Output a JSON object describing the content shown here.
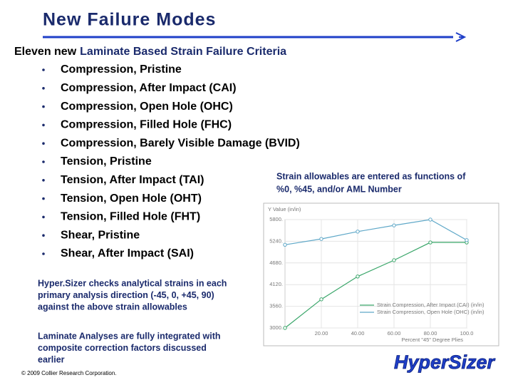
{
  "title": "New Failure Modes",
  "intro": {
    "plain": "Eleven new",
    "highlight": "Laminate Based Strain Failure Criteria"
  },
  "bullets": [
    "Compression, Pristine",
    "Compression, After Impact (CAI)",
    "Compression, Open Hole (OHC)",
    "Compression, Filled Hole (FHC)",
    "Compression, Barely Visible Damage (BVID)",
    "Tension, Pristine",
    "Tension, After Impact (TAI)",
    "Tension, Open Hole (OHT)",
    "Tension, Filled Hole (FHT)",
    "Shear, Pristine",
    "Shear, After Impact (SAI)"
  ],
  "note": [
    "Strain allowables are entered as functions of",
    "%0, %45, and/or AML Number"
  ],
  "paragraphs": [
    [
      "Hyper.Sizer checks analytical strains in each",
      "primary analysis direction (-45, 0, +45, 90)",
      "against the above strain allowables"
    ],
    [
      "Laminate Analyses are fully integrated with",
      "composite correction factors discussed",
      "earlier"
    ]
  ],
  "footer": "© 2009 Collier Research Corporation.",
  "logo": "HyperSizer",
  "chart_data": {
    "type": "line",
    "y_label": "Y Value (in/in)",
    "x_label": "Percent \"45\" Degree Plies",
    "x": [
      0,
      20,
      40,
      60,
      80,
      100
    ],
    "series": [
      {
        "name": "Strain Compression, After Impact (CAI) (in/in)",
        "color": "#3aa66a",
        "values": [
          3000,
          3740,
          4330,
          4750,
          5210,
          5210
        ]
      },
      {
        "name": "Strain Compression, Open Hole (OHC) (in/in)",
        "color": "#5fa8c8",
        "values": [
          5150,
          5300,
          5490,
          5650,
          5800,
          5270
        ]
      }
    ],
    "xlim": [
      0,
      100
    ],
    "xticks": [
      {
        "value": 20,
        "label": "20.00"
      },
      {
        "value": 40,
        "label": "40.00"
      },
      {
        "value": 60,
        "label": "60.00"
      },
      {
        "value": 80,
        "label": "80.00"
      },
      {
        "value": 100,
        "label": "100.0"
      }
    ],
    "ylim": [
      3000,
      5800
    ],
    "yticks": [
      {
        "value": 3000,
        "label": "3000."
      },
      {
        "value": 3560,
        "label": "3560."
      },
      {
        "value": 4120,
        "label": "4120."
      },
      {
        "value": 4680,
        "label": "4680."
      },
      {
        "value": 5240,
        "label": "5240."
      },
      {
        "value": 5800,
        "label": "5800."
      }
    ],
    "grid": true
  }
}
